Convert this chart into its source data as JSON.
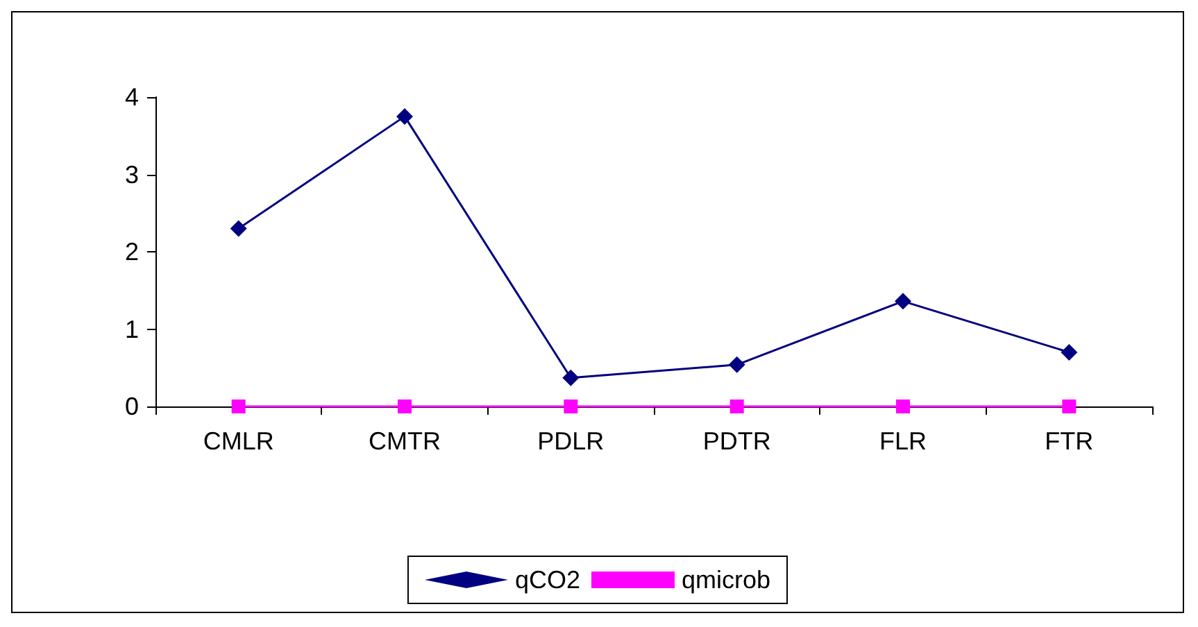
{
  "chart_data": {
    "type": "line",
    "categories": [
      "CMLR",
      "CMTR",
      "PDLR",
      "PDTR",
      "FLR",
      "FTR"
    ],
    "series": [
      {
        "name": "qCO2",
        "color": "#000080",
        "marker": "diamond",
        "values": [
          2.3,
          3.75,
          0.37,
          0.54,
          1.36,
          0.7
        ]
      },
      {
        "name": "qmicrob",
        "color": "#ff00ff",
        "marker": "square",
        "values": [
          0,
          0,
          0,
          0,
          0,
          0
        ]
      }
    ],
    "ylim": [
      0,
      4
    ],
    "yticks": [
      0,
      1,
      2,
      3,
      4
    ],
    "grid": false,
    "legend": "bottom"
  }
}
